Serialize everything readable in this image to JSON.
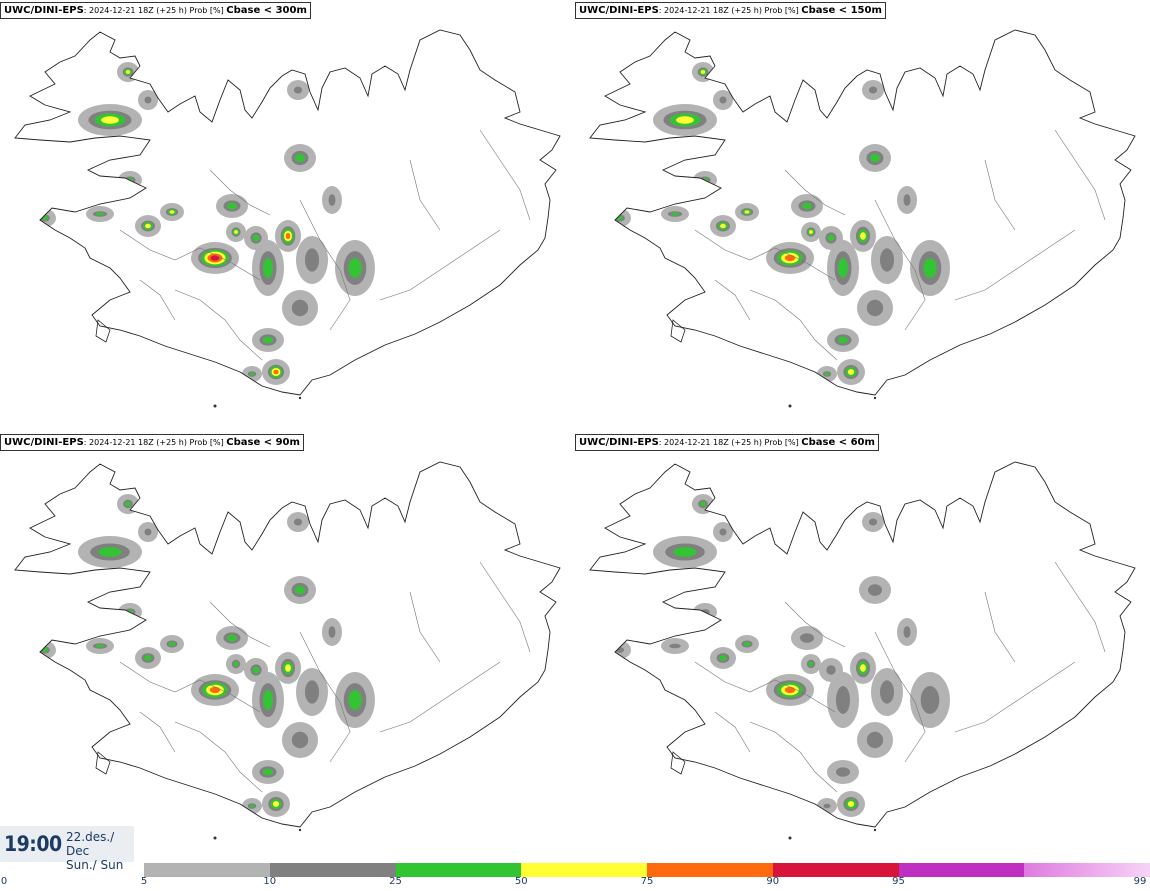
{
  "panels": [
    {
      "model": "UWC/DINI-EPS",
      "run": "2024-12-21 18Z (+25 h) Prob [%]",
      "threshold": "Cbase < 300m"
    },
    {
      "model": "UWC/DINI-EPS",
      "run": "2024-12-21 18Z (+25 h) Prob [%]",
      "threshold": "Cbase < 150m"
    },
    {
      "model": "UWC/DINI-EPS",
      "run": "2024-12-21 18Z (+25 h) Prob [%]",
      "threshold": "Cbase < 90m"
    },
    {
      "model": "UWC/DINI-EPS",
      "run": "2024-12-21 18Z (+25 h) Prob [%]",
      "threshold": "Cbase < 60m"
    }
  ],
  "valid": {
    "time": "19:00",
    "date_line1": "22.des./ Dec",
    "date_line2": "Sun./ Sun"
  },
  "legend": {
    "ticks": [
      "0",
      "5",
      "10",
      "25",
      "50",
      "75",
      "90",
      "95",
      "99"
    ],
    "colors": [
      "#b3b3b3",
      "#808080",
      "#33c433",
      "#ffff33",
      "#ff6a10",
      "#d8143a",
      "#c030c0",
      "#f0a8f0"
    ]
  }
}
